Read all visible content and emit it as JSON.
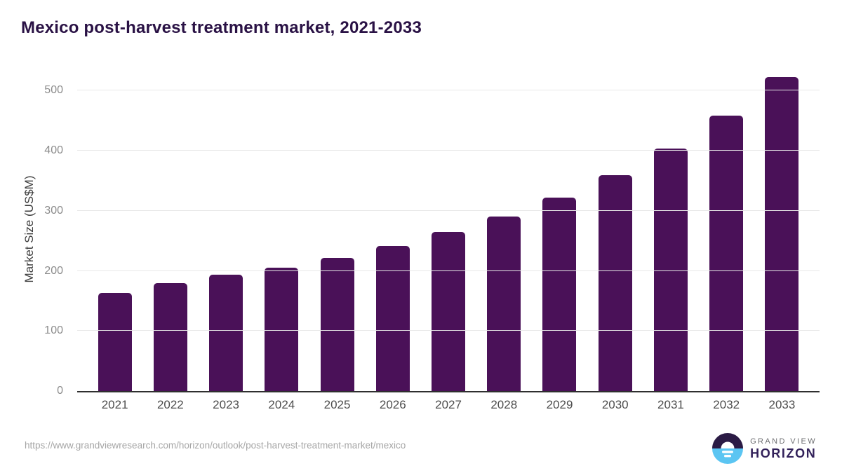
{
  "header": {
    "title": "Mexico post-harvest treatment market, 2021-2033"
  },
  "chart_data": {
    "type": "bar",
    "title": "Mexico post-harvest treatment market, 2021-2033",
    "categories": [
      "2021",
      "2022",
      "2023",
      "2024",
      "2025",
      "2026",
      "2027",
      "2028",
      "2029",
      "2030",
      "2031",
      "2032",
      "2033"
    ],
    "values": [
      163,
      180,
      194,
      205,
      222,
      242,
      265,
      291,
      322,
      359,
      404,
      458,
      523
    ],
    "xlabel": "",
    "ylabel": "Market Size (US$M)",
    "ylim": [
      0,
      540
    ],
    "yticks": [
      0,
      100,
      200,
      300,
      400,
      500
    ],
    "grid": true,
    "legend": "none",
    "bar_color": "#4a1158"
  },
  "footer": {
    "source_url": "https://www.grandviewresearch.com/horizon/outlook/post-harvest-treatment-market/mexico",
    "logo": {
      "brand_top": "GRAND VIEW",
      "brand_bottom": "HORIZON"
    }
  },
  "colors": {
    "bar": "#4a1158",
    "title_text": "#2a1245",
    "axis_label": "#3d3d3d",
    "y_tick": "#8c8c8c",
    "x_tick": "#4d4d4d",
    "gridline": "#e8e8e8",
    "baseline": "#2f2f2f",
    "url_text": "#a6a6a6",
    "logo_dark": "#2b1b45",
    "logo_blue": "#5bc5f2",
    "logo_gray": "#6d6e71"
  }
}
